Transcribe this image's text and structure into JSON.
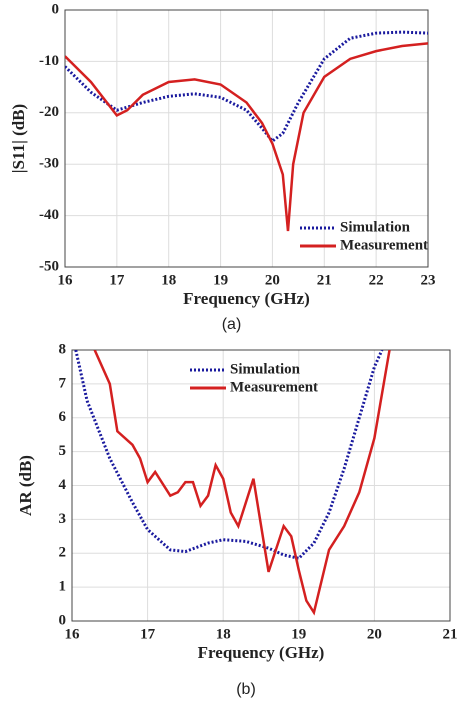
{
  "chart_data": [
    {
      "type": "line",
      "caption": "(a)",
      "xlabel": "Frequency (GHz)",
      "ylabel": "|S11| (dB)",
      "xlim": [
        16,
        23
      ],
      "xticks": [
        16,
        17,
        18,
        19,
        20,
        21,
        22,
        23
      ],
      "ylim": [
        -50,
        0
      ],
      "yticks": [
        -50,
        -40,
        -30,
        -20,
        -10,
        0
      ],
      "grid": true,
      "legend": "lower right",
      "series": [
        {
          "name": "Simulation",
          "color": "#1a1a9e",
          "style": "dotted",
          "x": [
            16,
            16.5,
            17,
            17.5,
            18,
            18.5,
            19,
            19.5,
            19.8,
            20,
            20.2,
            20.5,
            21,
            21.5,
            22,
            22.5,
            23
          ],
          "values": [
            -11,
            -16,
            -19.5,
            -18,
            -16.8,
            -16.3,
            -17,
            -19.5,
            -23,
            -25.5,
            -24,
            -18,
            -9.5,
            -5.5,
            -4.5,
            -4.3,
            -4.5
          ]
        },
        {
          "name": "Measurement",
          "color": "#d42020",
          "style": "solid",
          "x": [
            16,
            16.5,
            17,
            17.2,
            17.5,
            18,
            18.5,
            19,
            19.5,
            19.8,
            20,
            20.2,
            20.3,
            20.4,
            20.6,
            21,
            21.5,
            22,
            22.5,
            23
          ],
          "values": [
            -9,
            -14,
            -20.5,
            -19.5,
            -16.5,
            -14,
            -13.5,
            -14.5,
            -18,
            -22,
            -26,
            -32,
            -43,
            -30,
            -20,
            -13,
            -9.5,
            -8,
            -7,
            -6.5
          ]
        }
      ]
    },
    {
      "type": "line",
      "caption": "(b)",
      "xlabel": "Frequency (GHz)",
      "ylabel": "AR (dB)",
      "xlim": [
        16,
        21
      ],
      "xticks": [
        16,
        17,
        18,
        19,
        20,
        21
      ],
      "ylim": [
        0,
        8
      ],
      "yticks": [
        0,
        1,
        2,
        3,
        4,
        5,
        6,
        7,
        8
      ],
      "grid": true,
      "legend": "upper center",
      "series": [
        {
          "name": "Simulation",
          "color": "#1a1a9e",
          "style": "dotted",
          "x": [
            16.05,
            16.2,
            16.5,
            16.8,
            17,
            17.3,
            17.5,
            17.8,
            18,
            18.3,
            18.6,
            18.8,
            19,
            19.2,
            19.4,
            19.6,
            19.8,
            20,
            20.1
          ],
          "values": [
            8,
            6.5,
            4.8,
            3.5,
            2.7,
            2.1,
            2.05,
            2.3,
            2.4,
            2.35,
            2.15,
            1.95,
            1.85,
            2.3,
            3.2,
            4.5,
            6,
            7.5,
            8
          ]
        },
        {
          "name": "Measurement",
          "color": "#d42020",
          "style": "solid",
          "x": [
            16.3,
            16.5,
            16.6,
            16.8,
            16.9,
            17,
            17.1,
            17.3,
            17.4,
            17.5,
            17.6,
            17.7,
            17.8,
            17.9,
            18,
            18.1,
            18.2,
            18.4,
            18.6,
            18.8,
            18.9,
            19,
            19.1,
            19.2,
            19.4,
            19.6,
            19.8,
            20,
            20.2
          ],
          "values": [
            8,
            7,
            5.6,
            5.2,
            4.8,
            4.1,
            4.4,
            3.7,
            3.8,
            4.1,
            4.1,
            3.4,
            3.7,
            4.6,
            4.2,
            3.2,
            2.8,
            4.2,
            1.45,
            2.8,
            2.5,
            1.5,
            0.6,
            0.25,
            2.1,
            2.8,
            3.8,
            5.4,
            8
          ]
        }
      ]
    }
  ]
}
